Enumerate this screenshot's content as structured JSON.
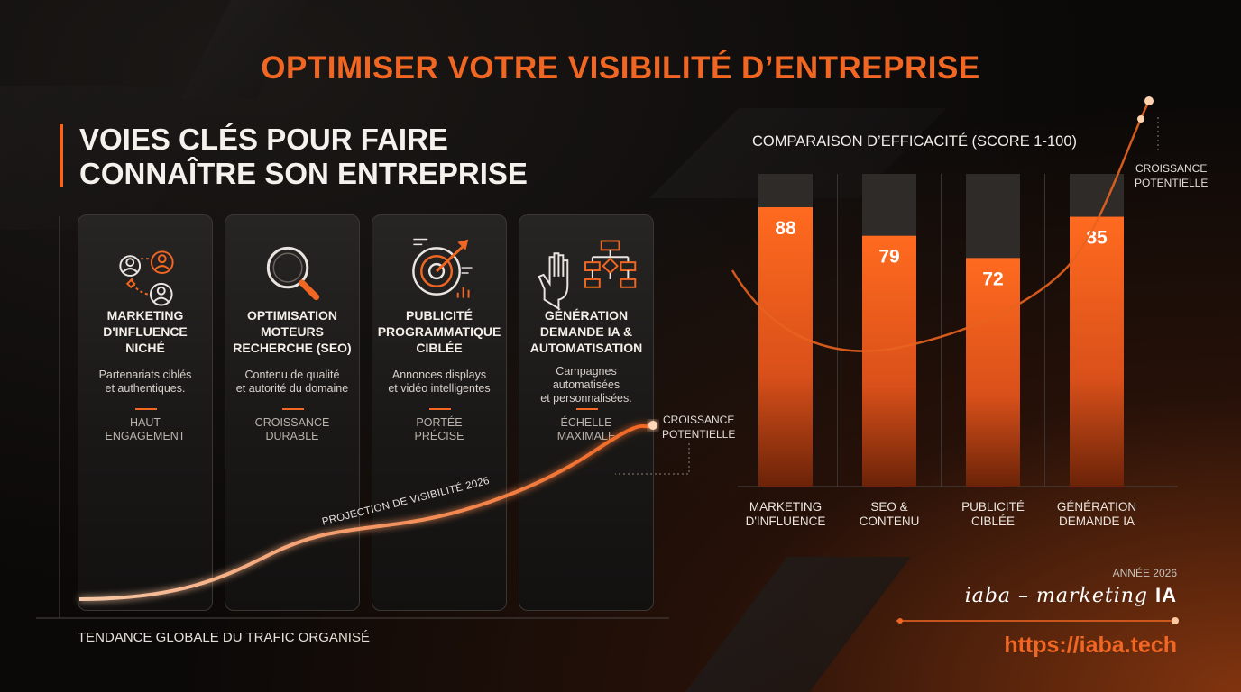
{
  "title": "OPTIMISER VOTRE VISIBILITÉ D’ENTREPRISE",
  "heading": [
    "VOIES CLÉS POUR FAIRE",
    "CONNAÎTRE SON ENTREPRISE"
  ],
  "cards": [
    {
      "icon": "influencer-network-icon",
      "title": [
        "MARKETING",
        "D'INFLUENCE",
        "NICHÉ"
      ],
      "desc": [
        "Partenariats ciblés",
        "et authentiques."
      ],
      "tag": [
        "HAUT",
        "ENGAGEMENT"
      ]
    },
    {
      "icon": "magnifier-icon",
      "title": [
        "OPTIMISATION",
        "MOTEURS",
        "RECHERCHE (SEO)"
      ],
      "desc": [
        "Contenu de qualité",
        "et autorité du domaine"
      ],
      "tag": [
        "CROISSANCE",
        "DURABLE"
      ]
    },
    {
      "icon": "target-arrow-icon",
      "title": [
        "PUBLICITÉ",
        "PROGRAMMATIQUE",
        "CIBLÉE"
      ],
      "desc": [
        "Annonces displays",
        "et vidéo intelligentes"
      ],
      "tag": [
        "PORTÉE",
        "PRÉCISE"
      ]
    },
    {
      "icon": "robot-hand-flowchart-icon",
      "title": [
        "GÉNÉRATION",
        "DEMANDE IA &",
        "AUTOMATISATION"
      ],
      "desc": [
        "Campagnes",
        "automatisées",
        "et personnalisées."
      ],
      "tag": [
        "ÉCHELLE",
        "MAXIMALE"
      ]
    }
  ],
  "trend": {
    "title": "TENDANCE GLOBALE DU TRAFIC ORGANISÉ",
    "curve_label": "PROJECTION DE VISIBILITÉ 2026",
    "end_label": [
      "CROISSANCE",
      "POTENTIELLE"
    ]
  },
  "chart_data": {
    "type": "bar",
    "title": "COMPARAISON D’EFFICACITÉ (SCORE 1-100)",
    "categories": [
      [
        "MARKETING",
        "D'INFLUENCE"
      ],
      [
        "SEO &",
        "CONTENU"
      ],
      [
        "PUBLICITÉ",
        "CIBLÉE"
      ],
      [
        "GÉNÉRATION",
        "DEMANDE IA"
      ]
    ],
    "values": [
      88,
      79,
      72,
      85
    ],
    "ylim": [
      0,
      100
    ],
    "bar_color": "#f06622",
    "track_color": "#2e2b29",
    "annotation": [
      "CROISSANCE",
      "POTENTIELLE"
    ]
  },
  "footer": {
    "year": "ANNÉE 2026",
    "signature_script": "iaba – marketing",
    "signature_bold": "IA",
    "url": "https://iaba.tech"
  },
  "colors": {
    "accent": "#f06622",
    "background": "#0b0908"
  }
}
